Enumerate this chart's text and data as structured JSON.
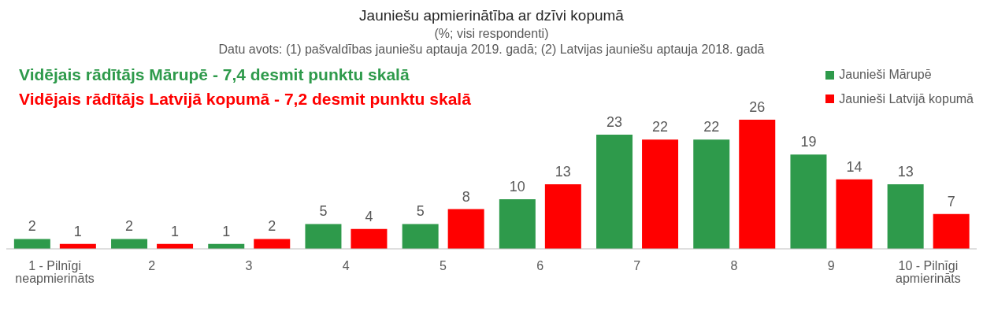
{
  "chart_data": {
    "type": "bar",
    "title": "Jauniešu apmierinātība ar dzīvi kopumā",
    "subtitle": "(%; visi respondenti)",
    "annotations": [
      "Datu avots: (1) pašvaldības jauniešu aptauja 2019. gadā; (2) Latvijas jauniešu aptauja 2018. gadā",
      "Vidējais rādītājs Mārupē - 7,4 desmit punktu skalā",
      "Vidējais rādītājs Latvijā kopumā - 7,2 desmit punktu skalā"
    ],
    "categories": [
      "1 - Pilnīgi neapmierināts",
      "2",
      "3",
      "4",
      "5",
      "6",
      "7",
      "8",
      "9",
      "10 - Pilnīgi apmierināts"
    ],
    "series": [
      {
        "name": "Jaunieši Mārupē",
        "color": "#2e9a4b",
        "values": [
          2,
          2,
          1,
          5,
          5,
          10,
          23,
          22,
          19,
          13
        ]
      },
      {
        "name": "Jaunieši Latvijā kopumā",
        "color": "#ff0000",
        "values": [
          1,
          1,
          2,
          4,
          8,
          13,
          22,
          26,
          14,
          7
        ]
      }
    ],
    "data_labels": true,
    "legend": "top right",
    "grid": false
  }
}
